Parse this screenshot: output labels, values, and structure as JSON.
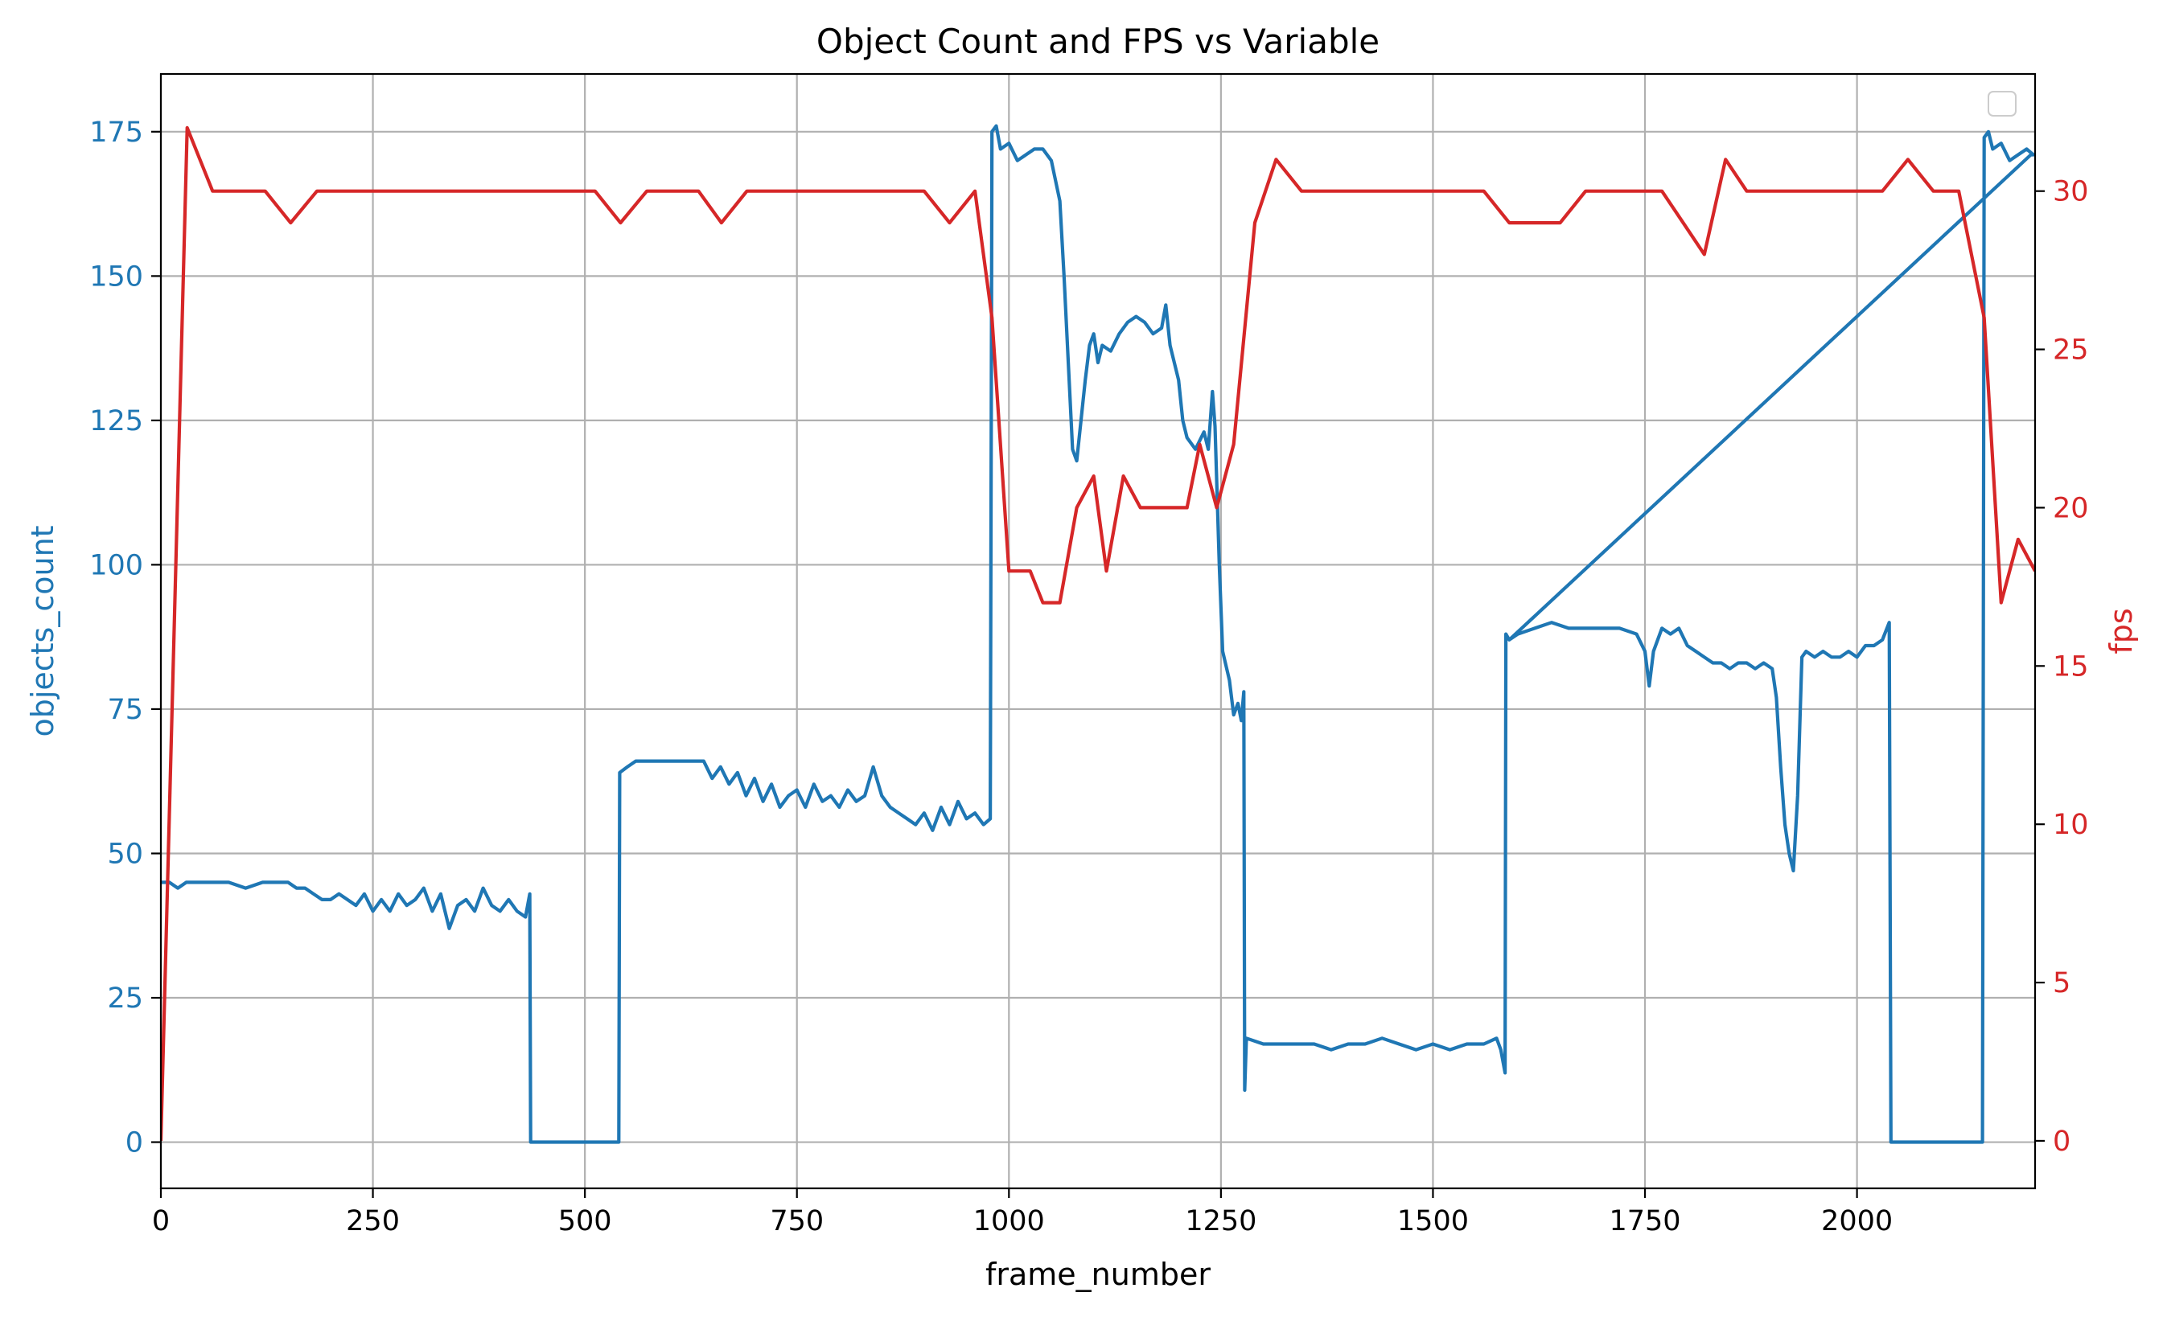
{
  "chart_data": {
    "type": "line",
    "title": "Object Count and FPS vs Variable",
    "xlabel": "frame_number",
    "ylabel": "objects_count",
    "y2label": "fps",
    "xlim": [
      0,
      2210
    ],
    "ylim": [
      -8,
      185
    ],
    "y2lim": [
      -1.5,
      33.7
    ],
    "xticks": [
      0,
      250,
      500,
      750,
      1000,
      1250,
      1500,
      1750,
      2000
    ],
    "yticks": [
      0,
      25,
      50,
      75,
      100,
      125,
      150,
      175
    ],
    "y2ticks": [
      0,
      5,
      10,
      15,
      20,
      25,
      30
    ],
    "grid": true,
    "legend": "top-right (empty)",
    "colors": {
      "objects_count": "#1f77b4",
      "fps": "#d62728",
      "grid": "#b0b0b0"
    },
    "series": [
      {
        "key": "objects_count",
        "axis": "left",
        "values": [
          [
            0,
            45
          ],
          [
            10,
            45
          ],
          [
            20,
            44
          ],
          [
            30,
            45
          ],
          [
            40,
            45
          ],
          [
            60,
            45
          ],
          [
            80,
            45
          ],
          [
            100,
            44
          ],
          [
            120,
            45
          ],
          [
            150,
            45
          ],
          [
            160,
            44
          ],
          [
            170,
            44
          ],
          [
            180,
            43
          ],
          [
            190,
            42
          ],
          [
            200,
            42
          ],
          [
            210,
            43
          ],
          [
            220,
            42
          ],
          [
            230,
            41
          ],
          [
            240,
            43
          ],
          [
            250,
            40
          ],
          [
            260,
            42
          ],
          [
            270,
            40
          ],
          [
            280,
            43
          ],
          [
            290,
            41
          ],
          [
            300,
            42
          ],
          [
            310,
            44
          ],
          [
            320,
            40
          ],
          [
            330,
            43
          ],
          [
            340,
            37
          ],
          [
            350,
            41
          ],
          [
            360,
            42
          ],
          [
            370,
            40
          ],
          [
            380,
            44
          ],
          [
            390,
            41
          ],
          [
            400,
            40
          ],
          [
            410,
            42
          ],
          [
            420,
            40
          ],
          [
            430,
            39
          ],
          [
            435,
            43
          ],
          [
            436,
            0
          ],
          [
            540,
            0
          ],
          [
            541,
            64
          ],
          [
            550,
            65
          ],
          [
            560,
            66
          ],
          [
            580,
            66
          ],
          [
            600,
            66
          ],
          [
            620,
            66
          ],
          [
            640,
            66
          ],
          [
            650,
            63
          ],
          [
            660,
            65
          ],
          [
            670,
            62
          ],
          [
            680,
            64
          ],
          [
            690,
            60
          ],
          [
            700,
            63
          ],
          [
            710,
            59
          ],
          [
            720,
            62
          ],
          [
            730,
            58
          ],
          [
            740,
            60
          ],
          [
            750,
            61
          ],
          [
            760,
            58
          ],
          [
            770,
            62
          ],
          [
            780,
            59
          ],
          [
            790,
            60
          ],
          [
            800,
            58
          ],
          [
            810,
            61
          ],
          [
            820,
            59
          ],
          [
            830,
            60
          ],
          [
            840,
            65
          ],
          [
            850,
            60
          ],
          [
            860,
            58
          ],
          [
            870,
            57
          ],
          [
            880,
            56
          ],
          [
            890,
            55
          ],
          [
            900,
            57
          ],
          [
            910,
            54
          ],
          [
            920,
            58
          ],
          [
            930,
            55
          ],
          [
            940,
            59
          ],
          [
            950,
            56
          ],
          [
            960,
            57
          ],
          [
            970,
            55
          ],
          [
            978,
            56
          ],
          [
            980,
            175
          ],
          [
            985,
            176
          ],
          [
            990,
            172
          ],
          [
            1000,
            173
          ],
          [
            1010,
            170
          ],
          [
            1020,
            171
          ],
          [
            1030,
            172
          ],
          [
            1040,
            172
          ],
          [
            1050,
            170
          ],
          [
            1060,
            163
          ],
          [
            1065,
            150
          ],
          [
            1070,
            135
          ],
          [
            1075,
            120
          ],
          [
            1080,
            118
          ],
          [
            1085,
            125
          ],
          [
            1090,
            132
          ],
          [
            1095,
            138
          ],
          [
            1100,
            140
          ],
          [
            1105,
            135
          ],
          [
            1110,
            138
          ],
          [
            1120,
            137
          ],
          [
            1130,
            140
          ],
          [
            1140,
            142
          ],
          [
            1150,
            143
          ],
          [
            1160,
            142
          ],
          [
            1170,
            140
          ],
          [
            1180,
            141
          ],
          [
            1185,
            145
          ],
          [
            1190,
            138
          ],
          [
            1200,
            132
          ],
          [
            1205,
            125
          ],
          [
            1210,
            122
          ],
          [
            1220,
            120
          ],
          [
            1230,
            123
          ],
          [
            1235,
            120
          ],
          [
            1240,
            130
          ],
          [
            1243,
            124
          ],
          [
            1248,
            100
          ],
          [
            1252,
            85
          ],
          [
            1260,
            80
          ],
          [
            1265,
            74
          ],
          [
            1270,
            76
          ],
          [
            1274,
            73
          ],
          [
            1277,
            78
          ],
          [
            1278,
            9
          ],
          [
            1280,
            18
          ],
          [
            1300,
            17
          ],
          [
            1340,
            17
          ],
          [
            1360,
            17
          ],
          [
            1380,
            16
          ],
          [
            1400,
            17
          ],
          [
            1420,
            17
          ],
          [
            1440,
            18
          ],
          [
            1460,
            17
          ],
          [
            1480,
            16
          ],
          [
            1500,
            17
          ],
          [
            1520,
            16
          ],
          [
            1540,
            17
          ],
          [
            1560,
            17
          ],
          [
            1575,
            18
          ],
          [
            1580,
            16
          ],
          [
            1585,
            12
          ],
          [
            1586,
            88
          ],
          [
            1590,
            87
          ],
          [
            1600,
            88
          ],
          [
            1620,
            89
          ],
          [
            1640,
            90
          ],
          [
            1660,
            89
          ],
          [
            1680,
            89
          ],
          [
            1700,
            89
          ],
          [
            1720,
            89
          ],
          [
            1740,
            88
          ],
          [
            1750,
            85
          ],
          [
            1755,
            79
          ],
          [
            1760,
            85
          ],
          [
            1770,
            89
          ],
          [
            1780,
            88
          ],
          [
            1790,
            89
          ],
          [
            1800,
            86
          ],
          [
            1810,
            85
          ],
          [
            1820,
            84
          ],
          [
            1830,
            83
          ],
          [
            1840,
            83
          ],
          [
            1850,
            82
          ],
          [
            1860,
            83
          ],
          [
            1870,
            83
          ],
          [
            1880,
            82
          ],
          [
            1890,
            83
          ],
          [
            1900,
            82
          ],
          [
            1905,
            77
          ],
          [
            1910,
            65
          ],
          [
            1915,
            55
          ],
          [
            1920,
            50
          ],
          [
            1925,
            47
          ],
          [
            1930,
            60
          ],
          [
            1935,
            84
          ],
          [
            1940,
            85
          ],
          [
            1950,
            84
          ],
          [
            1960,
            85
          ],
          [
            1970,
            84
          ],
          [
            1980,
            84
          ],
          [
            1990,
            85
          ],
          [
            2000,
            84
          ],
          [
            2010,
            86
          ],
          [
            2020,
            86
          ],
          [
            2030,
            87
          ],
          [
            2038,
            90
          ],
          [
            2040,
            0
          ],
          [
            2148,
            0
          ],
          [
            2150,
            174
          ],
          [
            2155,
            175
          ],
          [
            2160,
            172
          ],
          [
            2170,
            173
          ],
          [
            2180,
            170
          ],
          [
            2190,
            171
          ],
          [
            2200,
            172
          ],
          [
            2208,
            171
          ],
          [
            2205,
            171
          ],
          [
            1590,
            87
          ]
        ]
      },
      {
        "key": "fps",
        "axis": "right",
        "values": [
          [
            0,
            0
          ],
          [
            31,
            32
          ],
          [
            61,
            30
          ],
          [
            92,
            30
          ],
          [
            123,
            30
          ],
          [
            153,
            29
          ],
          [
            184,
            30
          ],
          [
            215,
            30
          ],
          [
            246,
            30
          ],
          [
            276,
            30
          ],
          [
            307,
            30
          ],
          [
            338,
            30
          ],
          [
            368,
            30
          ],
          [
            399,
            30
          ],
          [
            430,
            30
          ],
          [
            461,
            30
          ],
          [
            491,
            30
          ],
          [
            512,
            30
          ],
          [
            542,
            29
          ],
          [
            573,
            30
          ],
          [
            604,
            30
          ],
          [
            634,
            30
          ],
          [
            661,
            29
          ],
          [
            691,
            30
          ],
          [
            722,
            30
          ],
          [
            753,
            30
          ],
          [
            783,
            30
          ],
          [
            814,
            30
          ],
          [
            844,
            30
          ],
          [
            875,
            30
          ],
          [
            900,
            30
          ],
          [
            930,
            29
          ],
          [
            960,
            30
          ],
          [
            980,
            26
          ],
          [
            1000,
            18
          ],
          [
            1025,
            18
          ],
          [
            1040,
            17
          ],
          [
            1060,
            17
          ],
          [
            1080,
            20
          ],
          [
            1100,
            21
          ],
          [
            1115,
            18
          ],
          [
            1135,
            21
          ],
          [
            1155,
            20
          ],
          [
            1175,
            20
          ],
          [
            1195,
            20
          ],
          [
            1210,
            20
          ],
          [
            1225,
            22
          ],
          [
            1245,
            20
          ],
          [
            1265,
            22
          ],
          [
            1290,
            29
          ],
          [
            1315,
            31
          ],
          [
            1345,
            30
          ],
          [
            1380,
            30
          ],
          [
            1410,
            30
          ],
          [
            1440,
            30
          ],
          [
            1470,
            30
          ],
          [
            1500,
            30
          ],
          [
            1530,
            30
          ],
          [
            1560,
            30
          ],
          [
            1590,
            29
          ],
          [
            1620,
            29
          ],
          [
            1650,
            29
          ],
          [
            1680,
            30
          ],
          [
            1710,
            30
          ],
          [
            1740,
            30
          ],
          [
            1770,
            30
          ],
          [
            1795,
            29
          ],
          [
            1820,
            28
          ],
          [
            1845,
            31
          ],
          [
            1870,
            30
          ],
          [
            1900,
            30
          ],
          [
            1930,
            30
          ],
          [
            1960,
            30
          ],
          [
            2000,
            30
          ],
          [
            2030,
            30
          ],
          [
            2060,
            31
          ],
          [
            2090,
            30
          ],
          [
            2120,
            30
          ],
          [
            2150,
            26
          ],
          [
            2170,
            17
          ],
          [
            2190,
            19
          ],
          [
            2210,
            18
          ]
        ]
      }
    ]
  }
}
